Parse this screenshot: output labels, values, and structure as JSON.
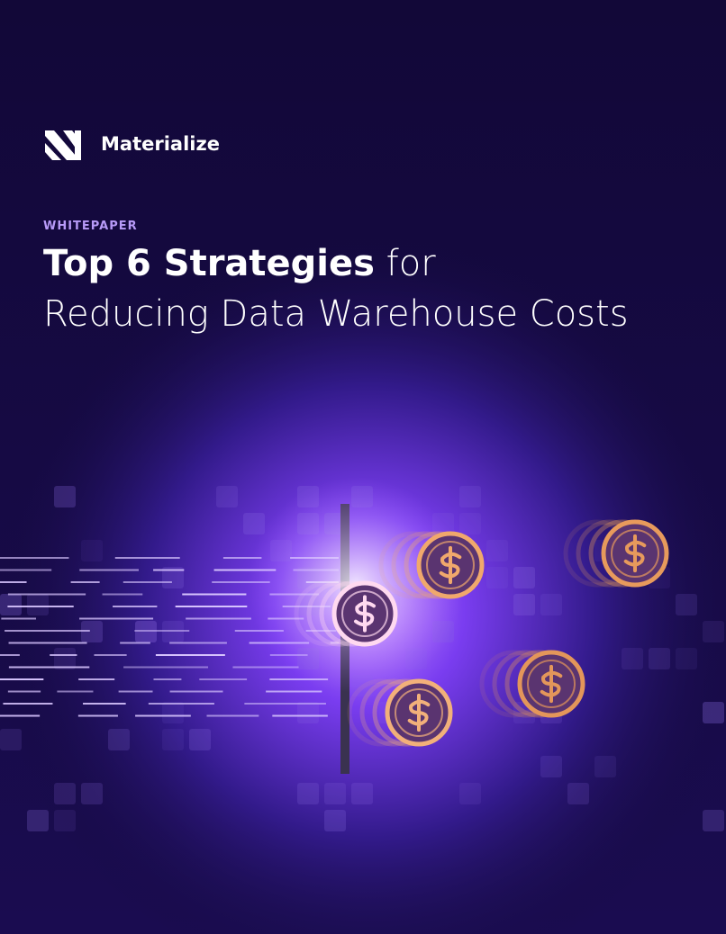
{
  "brand": {
    "name": "Materialize"
  },
  "cover": {
    "label": "WHITEPAPER",
    "title_bold": "Top 6 Strategies",
    "title_rest": "for",
    "title_line2": "Reducing Data Warehouse Costs"
  }
}
